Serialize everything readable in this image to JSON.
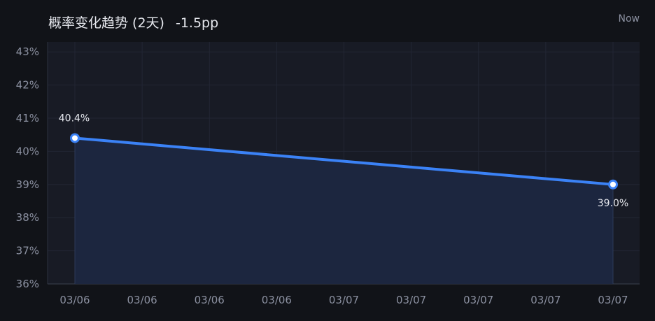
{
  "header": {
    "title": "概率变化趋势 (2天)",
    "delta": "-1.5pp",
    "now_label": "Now"
  },
  "chart_data": {
    "type": "area",
    "title": "概率变化趋势 (2天)",
    "xlabel": "",
    "ylabel": "",
    "x_tick_labels": [
      "03/06",
      "03/06",
      "03/06",
      "03/06",
      "03/07",
      "03/07",
      "03/07",
      "03/07",
      "03/07"
    ],
    "y_tick_labels": [
      "36%",
      "37%",
      "38%",
      "39%",
      "40%",
      "41%",
      "42%",
      "43%"
    ],
    "ylim": [
      36,
      43.3
    ],
    "grid": true,
    "series": [
      {
        "points": [
          {
            "x": "03/06",
            "y": 40.4,
            "label": "40.4%"
          },
          {
            "x": "03/07",
            "y": 39.0,
            "label": "39.0%"
          }
        ]
      }
    ],
    "colors": {
      "line": "#3b82f6",
      "fill": "#1c2740",
      "background": "#181b25",
      "grid": "#222634"
    }
  }
}
